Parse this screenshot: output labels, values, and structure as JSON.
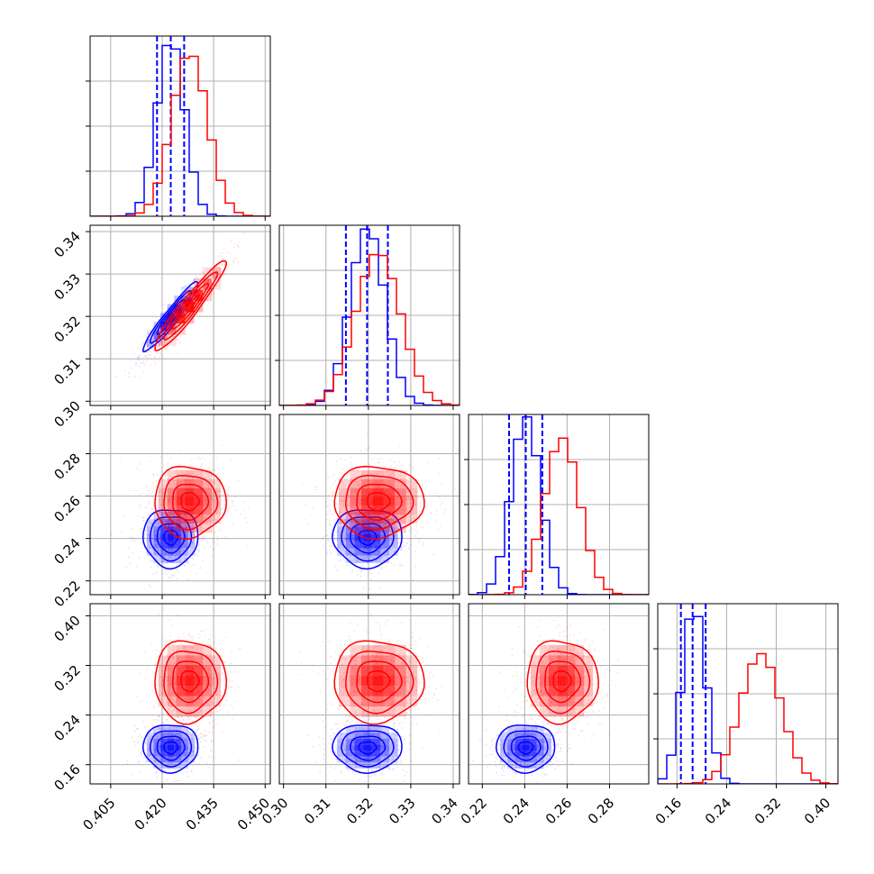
{
  "chart_data": {
    "type": "corner",
    "grid": true,
    "parameters": [
      {
        "range": [
          0.399,
          0.4515
        ],
        "ticks": [
          0.405,
          0.42,
          0.435,
          0.45
        ],
        "tick_labels": [
          "0.405",
          "0.420",
          "0.435",
          "0.450"
        ]
      },
      {
        "range": [
          0.299,
          0.3415
        ],
        "ticks": [
          0.3,
          0.31,
          0.32,
          0.33,
          0.34
        ],
        "tick_labels": [
          "0.30",
          "0.31",
          "0.32",
          "0.33",
          "0.34"
        ]
      },
      {
        "range": [
          0.2135,
          0.2985
        ],
        "ticks": [
          0.22,
          0.24,
          0.26,
          0.28
        ],
        "tick_labels": [
          "0.22",
          "0.24",
          "0.26",
          "0.28"
        ]
      },
      {
        "range": [
          0.129,
          0.4195
        ],
        "ticks": [
          0.16,
          0.24,
          0.32,
          0.4
        ],
        "tick_labels": [
          "0.16",
          "0.24",
          "0.32",
          "0.40"
        ]
      }
    ],
    "series": [
      {
        "color": "#0000ff",
        "mean": [
          0.4225,
          0.3198,
          0.2405,
          0.1875
        ],
        "std": [
          0.004,
          0.0041,
          0.0069,
          0.0192
        ],
        "histogram_peak_fraction": [
          1.0,
          1.0,
          1.0,
          1.0
        ],
        "quantiles": [
          [
            0.4185,
            0.4225,
            0.4264
          ],
          [
            0.3147,
            0.3197,
            0.3246
          ],
          [
            0.2326,
            0.2405,
            0.2483
          ],
          [
            0.1663,
            0.1852,
            0.2062
          ]
        ],
        "correlation_01": 0.95
      },
      {
        "color": "#ff0000",
        "mean": [
          0.428,
          0.3223,
          0.2575,
          0.295
        ],
        "std": [
          0.0052,
          0.0053,
          0.0084,
          0.033
        ],
        "histogram_peak_fraction": [
          0.92,
          0.86,
          0.88,
          0.73
        ],
        "quantiles": null,
        "correlation_01": 0.95
      }
    ]
  }
}
